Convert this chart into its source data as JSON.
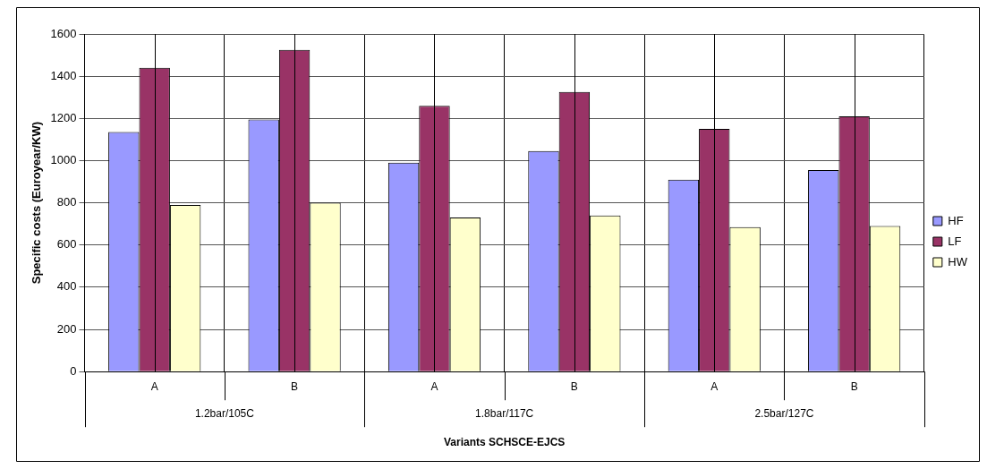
{
  "chart_data": {
    "type": "bar",
    "xlabel": "Variants SCHSCE-EJCS",
    "ylabel": "Specific costs (Euroyear/KW)",
    "categories": [
      "A",
      "B",
      "A",
      "B",
      "A",
      "B"
    ],
    "annotations": [
      "1.2bar/105C",
      "1.8bar/117C",
      "2.5bar/127C"
    ],
    "series": [
      {
        "name": "HF",
        "color": "#9999ff",
        "values": [
          1135,
          1195,
          990,
          1045,
          910,
          955
        ]
      },
      {
        "name": "LF",
        "color": "#993366",
        "values": [
          1440,
          1525,
          1260,
          1325,
          1150,
          1210
        ]
      },
      {
        "name": "HW",
        "color": "#ffffcc",
        "values": [
          790,
          800,
          730,
          740,
          685,
          690
        ]
      }
    ],
    "ylim": [
      0,
      1600
    ],
    "yticks": [
      0,
      200,
      400,
      600,
      800,
      1000,
      1200,
      1400,
      1600
    ],
    "grid": true,
    "legend": "right"
  }
}
